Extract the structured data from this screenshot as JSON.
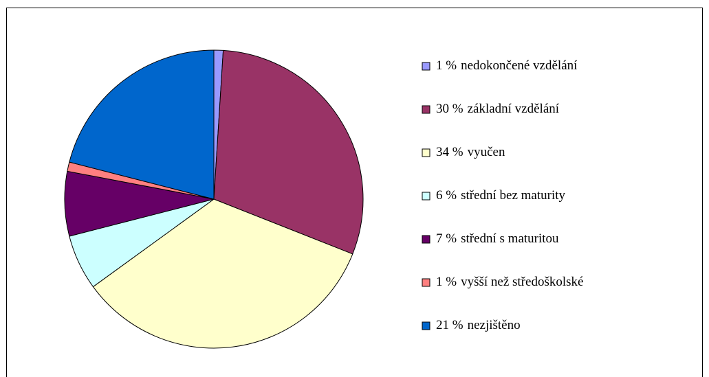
{
  "chart_data": {
    "type": "pie",
    "categories": [
      "nedokončené vzdělání",
      "základní vzdělání",
      "vyučen",
      "střední bez maturity",
      "střední s maturitou",
      "vyšší než středoškolské",
      "nezjištěno"
    ],
    "values": [
      1,
      30,
      34,
      6,
      7,
      1,
      21
    ],
    "value_labels": [
      "1 %",
      "30 %",
      "34 %",
      "6 %",
      "7 %",
      "1 %",
      "21 %"
    ],
    "colors": [
      "#9999ff",
      "#993366",
      "#ffffcc",
      "#ccffff",
      "#660066",
      "#ff8080",
      "#0066cc"
    ],
    "legend": "right"
  }
}
